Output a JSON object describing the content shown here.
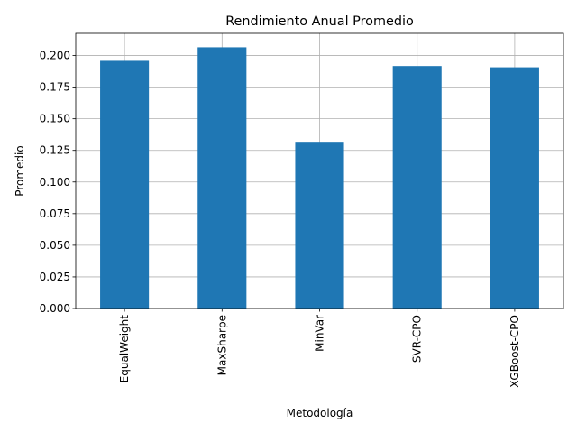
{
  "chart_data": {
    "type": "bar",
    "title": "Rendimiento Anual Promedio",
    "xlabel": "Metodología",
    "ylabel": "Promedio",
    "categories": [
      "EqualWeight",
      "MaxSharpe",
      "MinVar",
      "SVR-CPO",
      "XGBoost-CPO"
    ],
    "values": [
      0.1958,
      0.2065,
      0.1318,
      0.1917,
      0.1907
    ],
    "ylim": [
      0,
      0.2175
    ],
    "yticks": [
      0.0,
      0.025,
      0.05,
      0.075,
      0.1,
      0.125,
      0.15,
      0.175,
      0.2
    ],
    "ytick_labels": [
      "0.000",
      "0.025",
      "0.050",
      "0.075",
      "0.100",
      "0.125",
      "0.150",
      "0.175",
      "0.200"
    ],
    "grid": true,
    "bar_color": "#1f77b4"
  }
}
